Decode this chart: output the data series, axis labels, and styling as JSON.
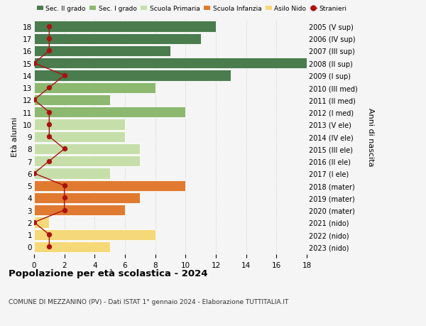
{
  "ages": [
    18,
    17,
    16,
    15,
    14,
    13,
    12,
    11,
    10,
    9,
    8,
    7,
    6,
    5,
    4,
    3,
    2,
    1,
    0
  ],
  "years": [
    "2005 (V sup)",
    "2006 (IV sup)",
    "2007 (III sup)",
    "2008 (II sup)",
    "2009 (I sup)",
    "2010 (III med)",
    "2011 (II med)",
    "2012 (I med)",
    "2013 (V ele)",
    "2014 (IV ele)",
    "2015 (III ele)",
    "2016 (II ele)",
    "2017 (I ele)",
    "2018 (mater)",
    "2019 (mater)",
    "2020 (mater)",
    "2021 (nido)",
    "2022 (nido)",
    "2023 (nido)"
  ],
  "bar_values": [
    12,
    11,
    9,
    18,
    13,
    8,
    5,
    10,
    6,
    6,
    7,
    7,
    5,
    10,
    7,
    6,
    1,
    8,
    5
  ],
  "bar_colors": [
    "#4a7c4e",
    "#4a7c4e",
    "#4a7c4e",
    "#4a7c4e",
    "#4a7c4e",
    "#8cb870",
    "#8cb870",
    "#8cb870",
    "#c6dfaa",
    "#c6dfaa",
    "#c6dfaa",
    "#c6dfaa",
    "#c6dfaa",
    "#e07a30",
    "#e07a30",
    "#e07a30",
    "#f5d878",
    "#f5d878",
    "#f5d878"
  ],
  "stranieri_values": [
    1,
    1,
    1,
    0,
    2,
    1,
    0,
    1,
    1,
    1,
    2,
    1,
    0,
    2,
    2,
    2,
    0,
    1,
    1
  ],
  "stranieri_color": "#aa1111",
  "legend_labels": [
    "Sec. II grado",
    "Sec. I grado",
    "Scuola Primaria",
    "Scuola Infanzia",
    "Asilo Nido",
    "Stranieri"
  ],
  "legend_colors": [
    "#4a7c4e",
    "#8cb870",
    "#c6dfaa",
    "#e07a30",
    "#f5d878",
    "#aa1111"
  ],
  "ylabel_left": "Età alunni",
  "ylabel_right": "Anni di nascita",
  "xlim": [
    0,
    18
  ],
  "xticks": [
    0,
    2,
    4,
    6,
    8,
    10,
    12,
    14,
    16,
    18
  ],
  "title": "Popolazione per età scolastica - 2024",
  "subtitle": "COMUNE DI MEZZANINO (PV) - Dati ISTAT 1° gennaio 2024 - Elaborazione TUTTITALIA.IT",
  "background_color": "#f5f5f5",
  "bar_height": 0.88
}
